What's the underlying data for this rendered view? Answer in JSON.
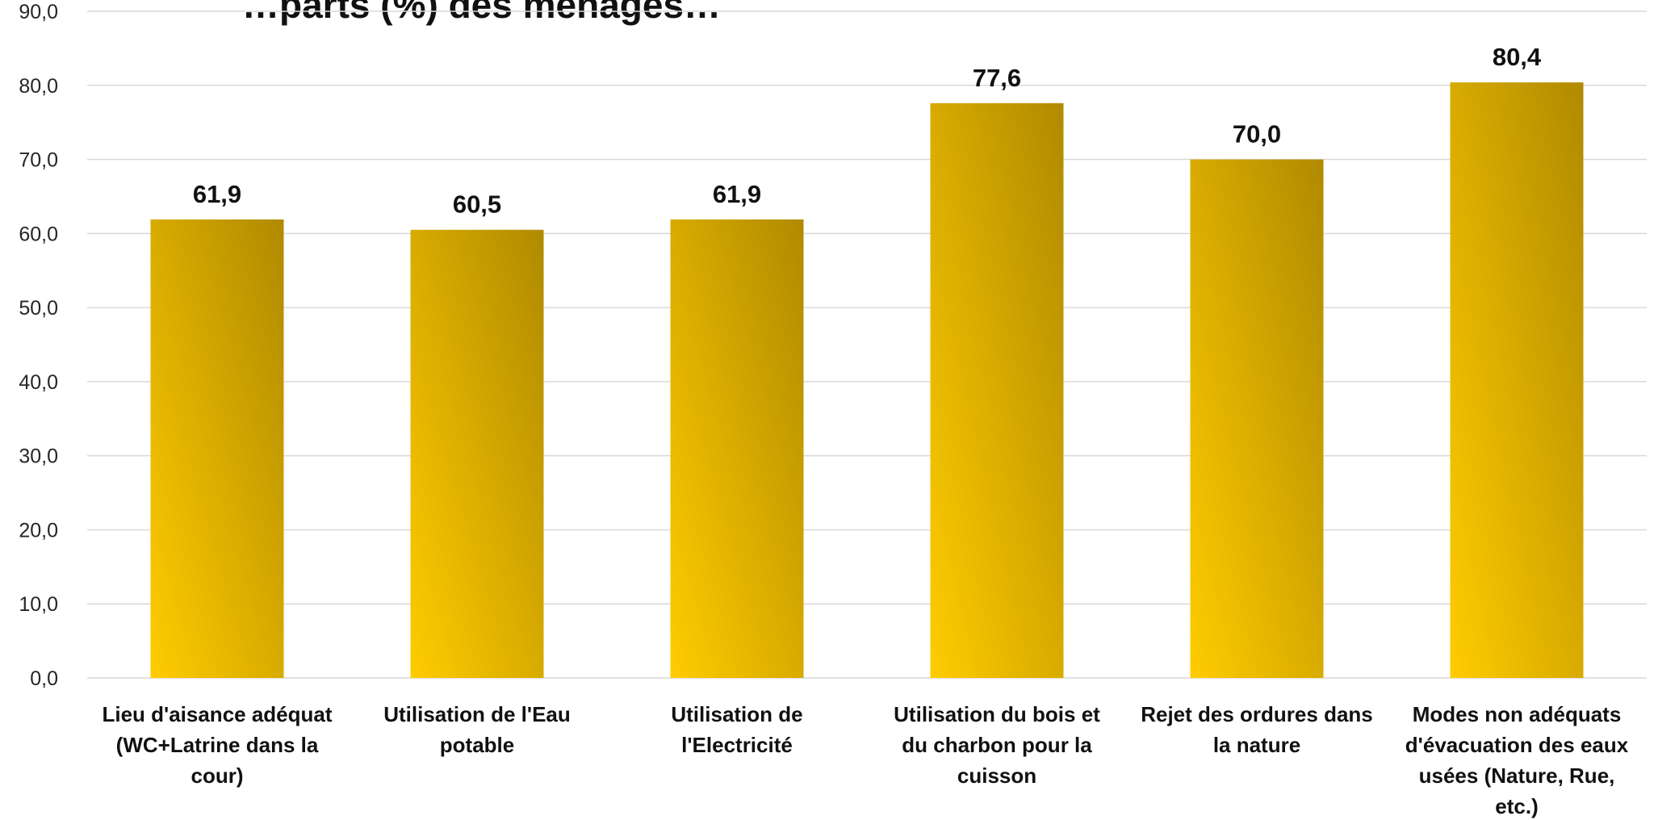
{
  "chart_data": {
    "type": "bar",
    "title": "…parts (%) des ménages…",
    "categories": [
      "Lieu d'aisance adéquat (WC+Latrine dans la cour)",
      "Utilisation de l'Eau potable",
      "Utilisation de l'Electricité",
      "Utilisation du bois et du charbon pour la cuisson",
      "Rejet des ordures dans la nature",
      "Modes non adéquats d'évacuation des eaux usées (Nature, Rue, etc.)"
    ],
    "category_lines": [
      [
        "Lieu d'aisance adéquat",
        "(WC+Latrine dans la",
        "cour)"
      ],
      [
        "Utilisation de l'Eau",
        "potable"
      ],
      [
        "Utilisation de",
        "l'Electricité"
      ],
      [
        "Utilisation du bois et",
        "du charbon pour la",
        "cuisson"
      ],
      [
        "Rejet des ordures dans",
        "la nature"
      ],
      [
        "Modes non adéquats",
        "d'évacuation des eaux",
        "usées (Nature, Rue,",
        "etc.)"
      ]
    ],
    "values": [
      61.9,
      60.5,
      61.9,
      77.6,
      70.0,
      80.4
    ],
    "value_labels": [
      "61,9",
      "60,5",
      "61,9",
      "77,6",
      "70,0",
      "80,4"
    ],
    "ylim": [
      0,
      90
    ],
    "yticks": [
      0,
      10,
      20,
      30,
      40,
      50,
      60,
      70,
      80,
      90
    ],
    "ytick_labels": [
      "0,0",
      "10,0",
      "20,0",
      "30,0",
      "40,0",
      "50,0",
      "60,0",
      "70,0",
      "80,0",
      "90,0"
    ],
    "grid": true,
    "legend": "none",
    "bar_color_light": "#ffcc00",
    "bar_color_dark": "#b08a00",
    "grid_color": "#d9d9d9"
  }
}
